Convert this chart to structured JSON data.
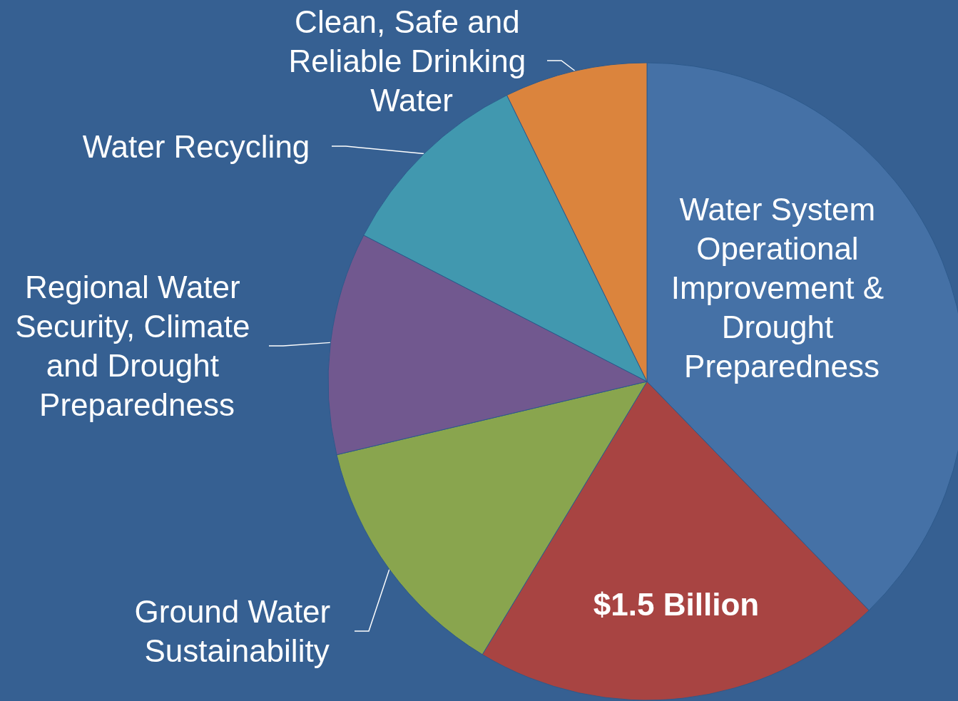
{
  "chart_data": {
    "type": "pie",
    "categories": [
      "Water System Operational Improvement & Drought Preparedness",
      null,
      "Ground Water Sustainability",
      "Regional Water Security, Climate and Drought Preparedness",
      "Water Recycling",
      "Clean, Safe and Reliable Drinking Water"
    ],
    "values": [
      2.71,
      1.5,
      0.91,
      0.81,
      0.73,
      0.52
    ],
    "colors": [
      "#4571a6",
      "#a84442",
      "#89a54e",
      "#71588f",
      "#4198af",
      "#db843d"
    ],
    "value_labels": [
      null,
      "$1.5 Billion",
      null,
      null,
      null,
      null
    ]
  }
}
